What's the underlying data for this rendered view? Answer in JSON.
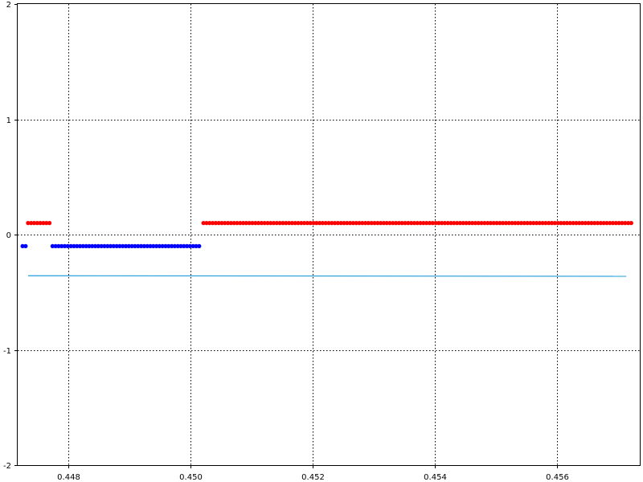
{
  "chart_data": {
    "type": "scatter",
    "title": "",
    "xlabel": "",
    "ylabel": "",
    "xlim": [
      0.44717,
      0.45735
    ],
    "ylim": [
      -2,
      2
    ],
    "grid": true,
    "grid_style": "dotted",
    "x_ticks": [
      0.448,
      0.45,
      0.452,
      0.454,
      0.456
    ],
    "x_tick_labels": [
      "0.448",
      "0.450",
      "0.452",
      "0.454",
      "0.456"
    ],
    "y_ticks": [
      -2,
      -1,
      0,
      1,
      2
    ],
    "y_tick_labels": [
      "-2",
      "-1",
      "0",
      "1",
      "2"
    ],
    "series": [
      {
        "kind": "points",
        "color": "#ff0000",
        "y": 0.1,
        "x_ranges": [
          [
            0.44734,
            0.44769
          ],
          [
            0.45021,
            0.45721
          ]
        ],
        "step": 5e-05
      },
      {
        "kind": "points",
        "color": "#0000ff",
        "y": -0.1,
        "x_ranges": [
          [
            0.44725,
            0.4473
          ],
          [
            0.44774,
            0.45016
          ]
        ],
        "step": 5e-05
      },
      {
        "kind": "line",
        "color": "#1f9bd9",
        "x": [
          0.44734,
          0.45713
        ],
        "y": [
          -0.357,
          -0.362
        ]
      }
    ]
  }
}
